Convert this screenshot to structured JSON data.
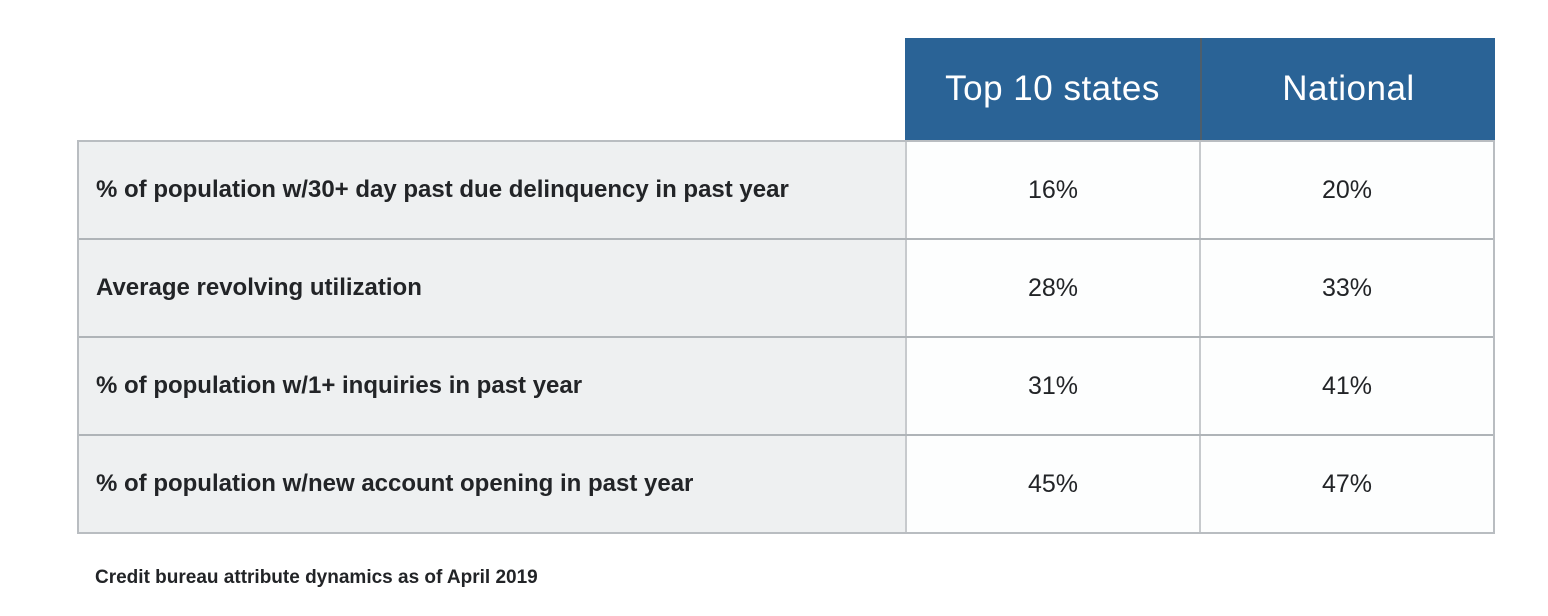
{
  "table": {
    "columns": [
      "Top 10 states",
      "National"
    ],
    "rows": [
      {
        "label": "% of population w/30+ day past due delinquency in past year",
        "top10": "16%",
        "national": "20%"
      },
      {
        "label": "Average revolving utilization",
        "top10": "28%",
        "national": "33%"
      },
      {
        "label": "% of population w/1+ inquiries in past year",
        "top10": "31%",
        "national": "41%"
      },
      {
        "label": "% of population w/new account opening in past year",
        "top10": "45%",
        "national": "47%"
      }
    ]
  },
  "footer": {
    "caption": "Credit bureau attribute dynamics as of April 2019"
  },
  "colors": {
    "page_bg": "#FFFFFF",
    "header_bg": "#2A6396",
    "header_text": "#FFFFFF",
    "header_divider": "#4D5E6C",
    "label_bg": "#EEF0F1",
    "cell_bg": "#FDFEFE",
    "border_outer": "#B9BDC1",
    "border_row": "#AFB4B8",
    "border_col": "#C7CACD",
    "text_dark": "#222427"
  },
  "chart_data": {
    "type": "table",
    "title": "",
    "caption": "Credit bureau attribute dynamics as of April 2019",
    "unit": "%",
    "categories": [
      "% of population w/30+ day past due delinquency in past year",
      "Average revolving utilization",
      "% of population w/1+ inquiries in past year",
      "% of population w/new account opening in past year"
    ],
    "series": [
      {
        "name": "Top 10 states",
        "values": [
          16,
          28,
          31,
          45
        ]
      },
      {
        "name": "National",
        "values": [
          20,
          33,
          41,
          47
        ]
      }
    ]
  }
}
